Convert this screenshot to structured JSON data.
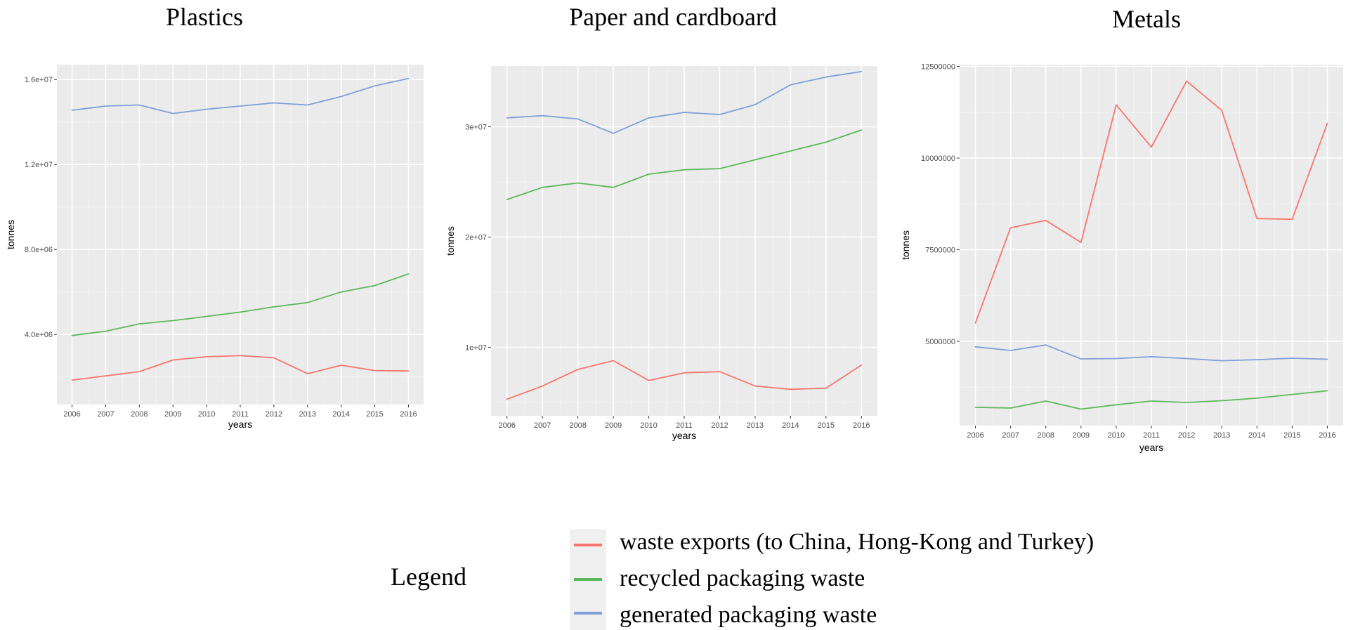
{
  "chart_data": [
    {
      "type": "line",
      "title": "Plastics",
      "xlabel": "years",
      "ylabel": "tonnes",
      "x": [
        2006,
        2007,
        2008,
        2009,
        2010,
        2011,
        2012,
        2013,
        2014,
        2015,
        2016
      ],
      "xlim": [
        2005.55,
        2016.45
      ],
      "ylim": [
        700000,
        16700000
      ],
      "yticks": [
        4000000,
        8000000,
        12000000,
        16000000
      ],
      "ytick_labels": [
        "4.0e+06",
        "8.0e+06",
        "1.2e+07",
        "1.6e+07"
      ],
      "grid": true,
      "series": [
        {
          "name": "waste exports (to China, Hong-Kong and Turkey)",
          "color": "#f8766d",
          "values": [
            1850000,
            2050000,
            2250000,
            2800000,
            2950000,
            3000000,
            2900000,
            2150000,
            2550000,
            2300000,
            2280000
          ]
        },
        {
          "name": "recycled packaging waste",
          "color": "#5cb85c",
          "values": [
            3950000,
            4150000,
            4500000,
            4650000,
            4850000,
            5050000,
            5300000,
            5500000,
            6000000,
            6300000,
            6850000
          ]
        },
        {
          "name": "generated packaging waste",
          "color": "#7f9fd8",
          "values": [
            14550000,
            14750000,
            14800000,
            14400000,
            14600000,
            14750000,
            14900000,
            14800000,
            15200000,
            15700000,
            16050000
          ]
        }
      ]
    },
    {
      "type": "line",
      "title": "Paper and cardboard",
      "xlabel": "years",
      "ylabel": "tonnes",
      "x": [
        2006,
        2007,
        2008,
        2009,
        2010,
        2011,
        2012,
        2013,
        2014,
        2015,
        2016
      ],
      "xlim": [
        2005.55,
        2016.45
      ],
      "ylim": [
        3800000,
        35500000
      ],
      "yticks": [
        10000000,
        20000000,
        30000000
      ],
      "ytick_labels": [
        "1e+07",
        "2e+07",
        "3e+07"
      ],
      "grid": true,
      "series": [
        {
          "name": "waste exports (to China, Hong-Kong and Turkey)",
          "color": "#f8766d",
          "values": [
            5300000,
            6500000,
            8000000,
            8800000,
            7000000,
            7700000,
            7800000,
            6500000,
            6200000,
            6300000,
            8400000
          ]
        },
        {
          "name": "recycled packaging waste",
          "color": "#5cb85c",
          "values": [
            23400000,
            24500000,
            24900000,
            24500000,
            25700000,
            26100000,
            26200000,
            27000000,
            27800000,
            28600000,
            29700000
          ]
        },
        {
          "name": "generated packaging waste",
          "color": "#7f9fd8",
          "values": [
            30800000,
            31000000,
            30700000,
            29400000,
            30800000,
            31300000,
            31100000,
            32000000,
            33800000,
            34500000,
            35000000
          ]
        }
      ]
    },
    {
      "type": "line",
      "title": "Metals",
      "xlabel": "years",
      "ylabel": "tonnes",
      "x": [
        2006,
        2007,
        2008,
        2009,
        2010,
        2011,
        2012,
        2013,
        2014,
        2015,
        2016
      ],
      "xlim": [
        2005.55,
        2016.45
      ],
      "ylim": [
        2700000,
        12550000
      ],
      "yticks": [
        5000000,
        7500000,
        10000000,
        12500000
      ],
      "ytick_labels": [
        "5000000",
        "7500000",
        "10000000",
        "12500000"
      ],
      "grid": true,
      "series": [
        {
          "name": "waste exports (to China, Hong-Kong and Turkey)",
          "color": "#f8766d",
          "values": [
            5500000,
            8100000,
            8300000,
            7700000,
            11450000,
            10300000,
            12100000,
            11300000,
            8350000,
            8330000,
            10950000
          ]
        },
        {
          "name": "recycled packaging waste",
          "color": "#5cb85c",
          "values": [
            3200000,
            3180000,
            3370000,
            3150000,
            3270000,
            3370000,
            3330000,
            3380000,
            3450000,
            3550000,
            3650000
          ]
        },
        {
          "name": "generated packaging waste",
          "color": "#7f9fd8",
          "values": [
            4850000,
            4750000,
            4900000,
            4520000,
            4530000,
            4580000,
            4530000,
            4470000,
            4500000,
            4540000,
            4510000
          ]
        }
      ]
    }
  ],
  "legend": {
    "title": "Legend",
    "placement": "bottom",
    "entries": [
      {
        "label": "waste exports (to China, Hong-Kong and Turkey)",
        "color": "#f8766d"
      },
      {
        "label": "recycled packaging waste",
        "color": "#5cb85c"
      },
      {
        "label": "generated packaging waste",
        "color": "#7f9fd8"
      }
    ]
  }
}
